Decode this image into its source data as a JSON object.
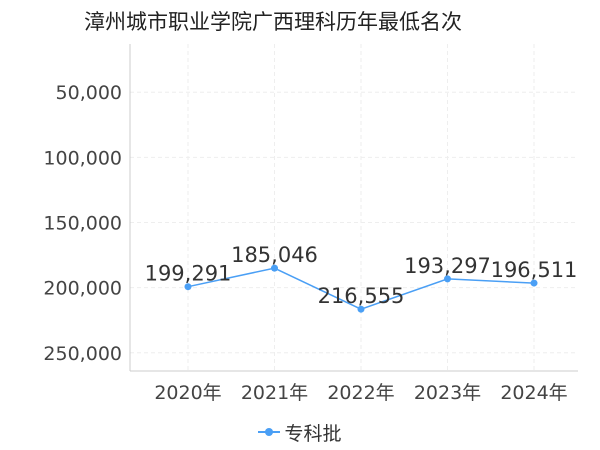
{
  "chart_data": {
    "type": "line",
    "title": "漳州城市职业学院广西理科历年最低名次",
    "xlabel": "",
    "ylabel": "",
    "categories": [
      "2020年",
      "2021年",
      "2022年",
      "2023年",
      "2024年"
    ],
    "series": [
      {
        "name": "专科批",
        "values": [
          199291,
          185046,
          216555,
          193297,
          196511
        ],
        "labels": [
          "199,291",
          "185,046",
          "216,555",
          "193,297",
          "196,511"
        ]
      }
    ],
    "yticks": [
      "50,000",
      "100,000",
      "150,000",
      "200,000",
      "250,000"
    ],
    "ytick_values": [
      50000,
      100000,
      150000,
      200000,
      250000
    ],
    "ylim": [
      13000,
      264000
    ],
    "y_inverted": true,
    "grid": true,
    "legend_position": "bottom",
    "series_color": "#4a9ff5"
  }
}
